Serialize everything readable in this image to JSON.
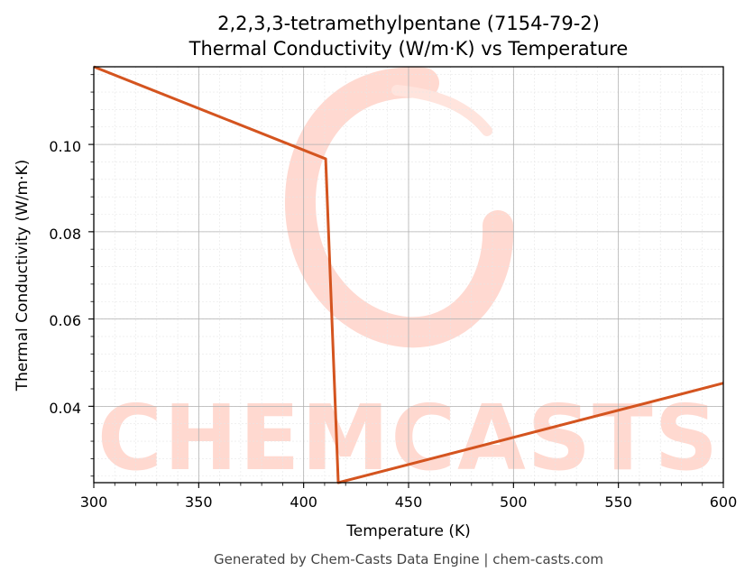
{
  "chart_data": {
    "type": "line",
    "title_line1": "2,2,3,3-tetramethylpentane (7154-79-2)",
    "title_line2": "Thermal Conductivity (W/m·K) vs Temperature",
    "xlabel": "Temperature (K)",
    "ylabel": "Thermal Conductivity (W/m·K)",
    "xlim": [
      300,
      600
    ],
    "ylim": [
      0.0225,
      0.1178
    ],
    "x_ticks": [
      300,
      350,
      400,
      450,
      500,
      550,
      600
    ],
    "x_tick_labels": [
      "300",
      "350",
      "400",
      "450",
      "500",
      "550",
      "600"
    ],
    "y_ticks": [
      0.04,
      0.06,
      0.08,
      0.1
    ],
    "y_tick_labels": [
      "0.04",
      "0.06",
      "0.08",
      "0.10"
    ],
    "grid": true,
    "series": [
      {
        "color": "#d4541f",
        "x": [
          300,
          410.5,
          416.5,
          600
        ],
        "y": [
          0.1178,
          0.0967,
          0.0225,
          0.0453
        ]
      }
    ]
  },
  "watermark": {
    "text": "CHEMCASTS"
  },
  "footer": "Generated by Chem-Casts Data Engine | chem-casts.com"
}
